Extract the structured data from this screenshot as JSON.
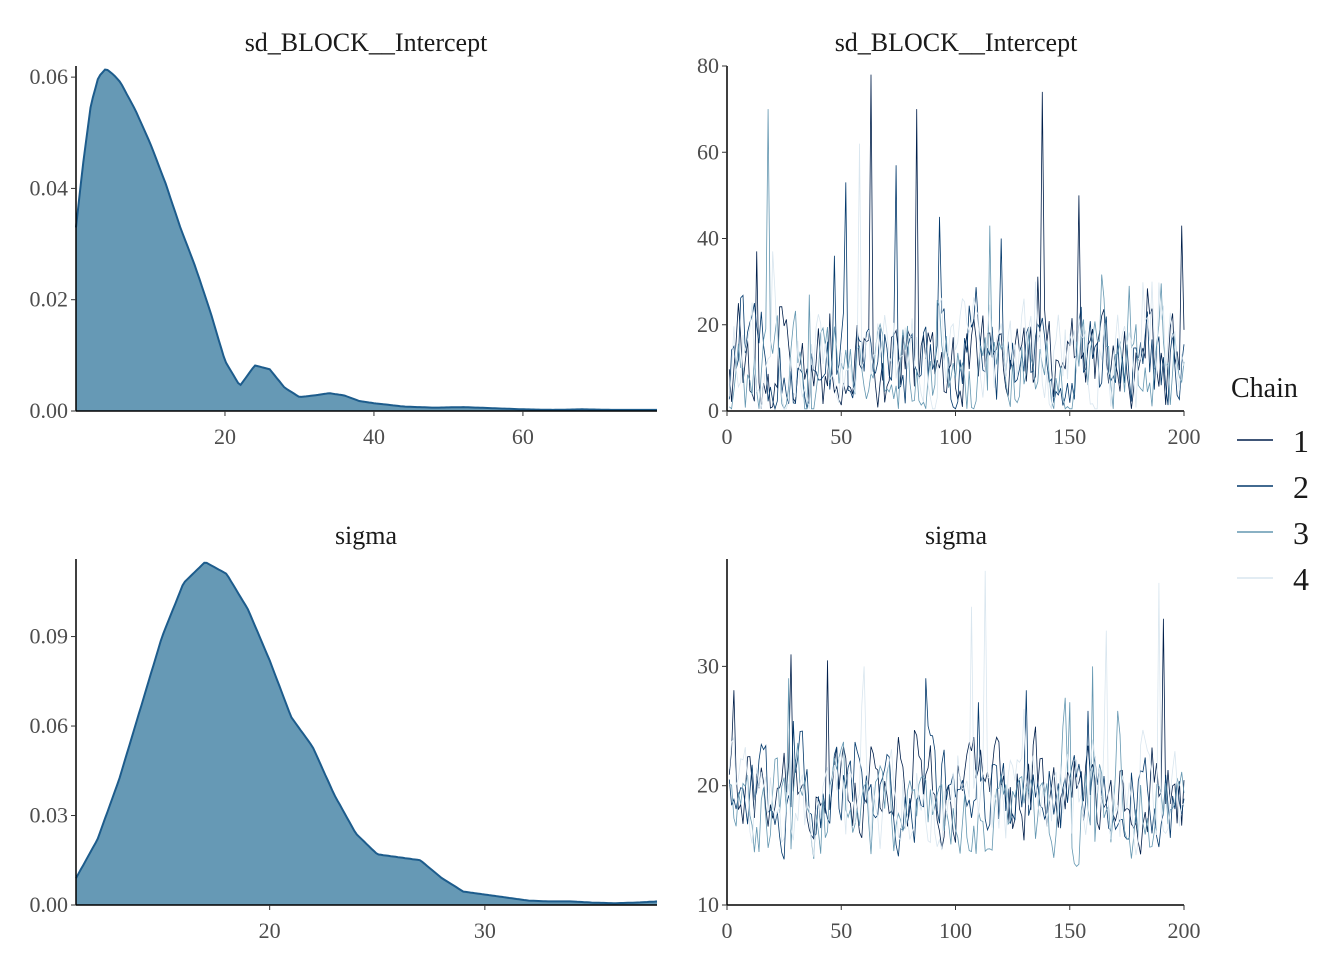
{
  "chart_data": [
    {
      "type": "area",
      "title": "sd_BLOCK__Intercept",
      "xlabel": "",
      "ylabel": "",
      "xlim": [
        0,
        78
      ],
      "ylim": [
        0,
        0.062
      ],
      "x_ticks": [
        20,
        40,
        60
      ],
      "y_ticks": [
        0.0,
        0.02,
        0.04,
        0.06
      ],
      "x_tick_labels": [
        "20",
        "40",
        "60"
      ],
      "y_tick_labels": [
        "0.00",
        "0.02",
        "0.04",
        "0.06"
      ],
      "grid": false,
      "fill_color": "#6699b5",
      "line_color": "#1d5c8c",
      "x": [
        0,
        1,
        2,
        3,
        4,
        5,
        6,
        7,
        8,
        10,
        12,
        14,
        16,
        18,
        20,
        22,
        24,
        26,
        28,
        30,
        32,
        34,
        36,
        38,
        40,
        44,
        48,
        52,
        56,
        60,
        64,
        68,
        72,
        76,
        78
      ],
      "y": [
        0.033,
        0.045,
        0.055,
        0.06,
        0.0615,
        0.0605,
        0.059,
        0.0565,
        0.054,
        0.048,
        0.041,
        0.033,
        0.026,
        0.018,
        0.009,
        0.0045,
        0.0082,
        0.0075,
        0.0042,
        0.0025,
        0.0028,
        0.0032,
        0.0028,
        0.0018,
        0.0014,
        0.0008,
        0.0006,
        0.0007,
        0.0005,
        0.0003,
        0.0002,
        0.0003,
        0.0002,
        0.0002,
        0.0002
      ]
    },
    {
      "type": "line",
      "title": "sd_BLOCK__Intercept",
      "xlabel": "",
      "ylabel": "",
      "xlim": [
        0,
        200
      ],
      "ylim": [
        0,
        80
      ],
      "x_ticks": [
        0,
        50,
        100,
        150,
        200
      ],
      "y_ticks": [
        0,
        20,
        40,
        60,
        80
      ],
      "x_tick_labels": [
        "0",
        "50",
        "100",
        "150",
        "200"
      ],
      "y_tick_labels": [
        "0",
        "20",
        "40",
        "60",
        "80"
      ],
      "grid": false,
      "n_iter": 200,
      "series": [
        {
          "name": "1",
          "color": "#011f4b",
          "center": 10,
          "spread": 9,
          "floor": 0.5,
          "peaks": [
            [
              63,
              78
            ],
            [
              83,
              70
            ],
            [
              138,
              74
            ],
            [
              154,
              50
            ],
            [
              199,
              43
            ],
            [
              13,
              37
            ]
          ]
        },
        {
          "name": "2",
          "color": "#03396c",
          "center": 11,
          "spread": 9,
          "floor": 0.5,
          "peaks": [
            [
              52,
              53
            ],
            [
              74,
              57
            ],
            [
              93,
              45
            ],
            [
              120,
              40
            ],
            [
              47,
              36
            ]
          ]
        },
        {
          "name": "3",
          "color": "#6497b1",
          "center": 9,
          "spread": 9,
          "floor": 0.5,
          "peaks": [
            [
              18,
              70
            ],
            [
              115,
              43
            ],
            [
              176,
              29
            ],
            [
              36,
              27
            ]
          ]
        },
        {
          "name": "4",
          "color": "#d9e6ef",
          "center": 12,
          "spread": 10,
          "floor": 0.5,
          "peaks": [
            [
              58,
              62
            ],
            [
              20,
              37
            ],
            [
              186,
              30
            ],
            [
              135,
              30
            ]
          ]
        }
      ]
    },
    {
      "type": "area",
      "title": "sigma",
      "xlabel": "",
      "ylabel": "",
      "xlim": [
        11,
        38
      ],
      "ylim": [
        0,
        0.116
      ],
      "x_ticks": [
        20,
        30
      ],
      "y_ticks": [
        0.0,
        0.03,
        0.06,
        0.09
      ],
      "x_tick_labels": [
        "20",
        "30"
      ],
      "y_tick_labels": [
        "0.00",
        "0.03",
        "0.06",
        "0.09"
      ],
      "grid": false,
      "fill_color": "#6699b5",
      "line_color": "#1d5c8c",
      "x": [
        11,
        12,
        13,
        14,
        15,
        16,
        17,
        18,
        19,
        20,
        21,
        22,
        23,
        24,
        25,
        26,
        27,
        28,
        29,
        30,
        31,
        32,
        33,
        34,
        35,
        36,
        37,
        38
      ],
      "y": [
        0.009,
        0.022,
        0.042,
        0.066,
        0.09,
        0.108,
        0.115,
        0.111,
        0.099,
        0.082,
        0.063,
        0.053,
        0.037,
        0.024,
        0.017,
        0.016,
        0.015,
        0.009,
        0.0045,
        0.0035,
        0.0025,
        0.0015,
        0.0012,
        0.0012,
        0.0008,
        0.0006,
        0.0008,
        0.0012
      ]
    },
    {
      "type": "line",
      "title": "sigma",
      "xlabel": "",
      "ylabel": "",
      "xlim": [
        0,
        200
      ],
      "ylim": [
        10,
        39
      ],
      "x_ticks": [
        0,
        50,
        100,
        150,
        200
      ],
      "y_ticks": [
        10,
        20,
        30
      ],
      "x_tick_labels": [
        "0",
        "50",
        "100",
        "150",
        "200"
      ],
      "y_tick_labels": [
        "10",
        "20",
        "30"
      ],
      "grid": false,
      "n_iter": 200,
      "series": [
        {
          "name": "1",
          "color": "#011f4b",
          "center": 19,
          "spread": 3.2,
          "floor": 11.5,
          "peaks": [
            [
              191,
              34
            ],
            [
              28,
              31
            ],
            [
              44,
              30.5
            ],
            [
              3,
              28
            ]
          ]
        },
        {
          "name": "2",
          "color": "#03396c",
          "center": 18.5,
          "spread": 3.2,
          "floor": 11.5,
          "peaks": [
            [
              87,
              29
            ],
            [
              131,
              28
            ],
            [
              110,
              27
            ]
          ]
        },
        {
          "name": "3",
          "color": "#6497b1",
          "center": 18,
          "spread": 3.2,
          "floor": 11.2,
          "peaks": [
            [
              27,
              29
            ],
            [
              160,
              30
            ],
            [
              150,
              27
            ]
          ]
        },
        {
          "name": "4",
          "color": "#d9e6ef",
          "center": 19,
          "spread": 3.5,
          "floor": 11.5,
          "peaks": [
            [
              113,
              38
            ],
            [
              189,
              37
            ],
            [
              107,
              35
            ],
            [
              166,
              33
            ],
            [
              60,
              30
            ]
          ]
        }
      ]
    }
  ],
  "legend": {
    "title": "Chain",
    "position": "right",
    "entries": [
      {
        "label": "1",
        "color": "#011f4b"
      },
      {
        "label": "2",
        "color": "#03396c"
      },
      {
        "label": "3",
        "color": "#6497b1"
      },
      {
        "label": "4",
        "color": "#d9e6ef"
      }
    ]
  }
}
